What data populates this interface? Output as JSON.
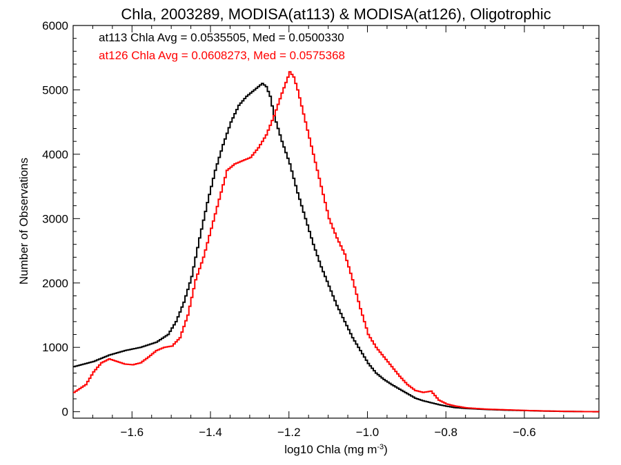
{
  "chart_data": {
    "type": "line",
    "step": true,
    "title": "Chla, 2003289, MODISA(at113) & MODISA(at126), Oligotrophic",
    "xlabel": "log10 Chla (mg m",
    "xlabel_sup": "-3",
    "xlabel_end": ")",
    "ylabel": "Number of Observations",
    "xlim": [
      -1.75,
      -0.41
    ],
    "ylim": [
      -100,
      6000
    ],
    "xticks": [
      -1.6,
      -1.4,
      -1.2,
      -1.0,
      -0.8,
      -0.6
    ],
    "xtick_labels": [
      "−1.6",
      "−1.4",
      "−1.2",
      "−1.0",
      "−0.8",
      "−0.6"
    ],
    "yticks": [
      0,
      1000,
      2000,
      3000,
      4000,
      5000,
      6000
    ],
    "ytick_labels": [
      "0",
      "1000",
      "2000",
      "3000",
      "4000",
      "5000",
      "6000"
    ],
    "grid": false,
    "legend": [
      {
        "text": "at113 Chla Avg = 0.0535505, Med = 0.0500330",
        "color": "#000000"
      },
      {
        "text": "at126 Chla Avg = 0.0608273, Med = 0.0575368",
        "color": "#ff0000"
      }
    ],
    "series": [
      {
        "color": "#000000",
        "points": [
          [
            -1.75,
            700
          ],
          [
            -1.7,
            780
          ],
          [
            -1.66,
            880
          ],
          [
            -1.62,
            950
          ],
          [
            -1.58,
            1000
          ],
          [
            -1.54,
            1080
          ],
          [
            -1.51,
            1200
          ],
          [
            -1.49,
            1400
          ],
          [
            -1.47,
            1700
          ],
          [
            -1.45,
            2100
          ],
          [
            -1.43,
            2700
          ],
          [
            -1.41,
            3250
          ],
          [
            -1.39,
            3750
          ],
          [
            -1.37,
            4150
          ],
          [
            -1.35,
            4500
          ],
          [
            -1.33,
            4760
          ],
          [
            -1.31,
            4900
          ],
          [
            -1.29,
            5000
          ],
          [
            -1.27,
            5100
          ],
          [
            -1.26,
            5050
          ],
          [
            -1.25,
            4900
          ],
          [
            -1.24,
            4600
          ],
          [
            -1.22,
            4200
          ],
          [
            -1.2,
            3850
          ],
          [
            -1.18,
            3400
          ],
          [
            -1.16,
            3000
          ],
          [
            -1.14,
            2600
          ],
          [
            -1.12,
            2250
          ],
          [
            -1.1,
            1950
          ],
          [
            -1.08,
            1650
          ],
          [
            -1.06,
            1400
          ],
          [
            -1.04,
            1150
          ],
          [
            -1.02,
            950
          ],
          [
            -1.0,
            750
          ],
          [
            -0.98,
            600
          ],
          [
            -0.96,
            500
          ],
          [
            -0.94,
            420
          ],
          [
            -0.92,
            350
          ],
          [
            -0.9,
            280
          ],
          [
            -0.88,
            210
          ],
          [
            -0.86,
            170
          ],
          [
            -0.84,
            140
          ],
          [
            -0.82,
            110
          ],
          [
            -0.8,
            85
          ],
          [
            -0.78,
            65
          ],
          [
            -0.75,
            50
          ],
          [
            -0.7,
            35
          ],
          [
            -0.65,
            25
          ],
          [
            -0.6,
            18
          ],
          [
            -0.55,
            10
          ],
          [
            -0.5,
            5
          ],
          [
            -0.45,
            2
          ],
          [
            -0.41,
            0
          ]
        ]
      },
      {
        "color": "#ff0000",
        "points": [
          [
            -1.75,
            300
          ],
          [
            -1.72,
            420
          ],
          [
            -1.7,
            620
          ],
          [
            -1.68,
            760
          ],
          [
            -1.66,
            820
          ],
          [
            -1.64,
            780
          ],
          [
            -1.62,
            740
          ],
          [
            -1.6,
            730
          ],
          [
            -1.58,
            760
          ],
          [
            -1.56,
            850
          ],
          [
            -1.54,
            950
          ],
          [
            -1.52,
            1000
          ],
          [
            -1.5,
            1020
          ],
          [
            -1.48,
            1150
          ],
          [
            -1.46,
            1500
          ],
          [
            -1.44,
            2050
          ],
          [
            -1.42,
            2400
          ],
          [
            -1.4,
            2850
          ],
          [
            -1.38,
            3300
          ],
          [
            -1.36,
            3750
          ],
          [
            -1.34,
            3850
          ],
          [
            -1.32,
            3900
          ],
          [
            -1.3,
            3950
          ],
          [
            -1.28,
            4100
          ],
          [
            -1.26,
            4300
          ],
          [
            -1.24,
            4600
          ],
          [
            -1.22,
            4950
          ],
          [
            -1.2,
            5280
          ],
          [
            -1.19,
            5200
          ],
          [
            -1.18,
            5000
          ],
          [
            -1.16,
            4500
          ],
          [
            -1.14,
            4000
          ],
          [
            -1.12,
            3500
          ],
          [
            -1.1,
            3000
          ],
          [
            -1.08,
            2700
          ],
          [
            -1.06,
            2450
          ],
          [
            -1.04,
            2050
          ],
          [
            -1.02,
            1600
          ],
          [
            -1.0,
            1200
          ],
          [
            -0.98,
            1000
          ],
          [
            -0.96,
            850
          ],
          [
            -0.94,
            700
          ],
          [
            -0.92,
            550
          ],
          [
            -0.9,
            420
          ],
          [
            -0.88,
            330
          ],
          [
            -0.86,
            300
          ],
          [
            -0.84,
            320
          ],
          [
            -0.82,
            180
          ],
          [
            -0.8,
            120
          ],
          [
            -0.78,
            90
          ],
          [
            -0.75,
            60
          ],
          [
            -0.7,
            40
          ],
          [
            -0.65,
            30
          ],
          [
            -0.6,
            20
          ],
          [
            -0.55,
            12
          ],
          [
            -0.5,
            6
          ],
          [
            -0.45,
            2
          ],
          [
            -0.41,
            0
          ]
        ]
      }
    ]
  }
}
